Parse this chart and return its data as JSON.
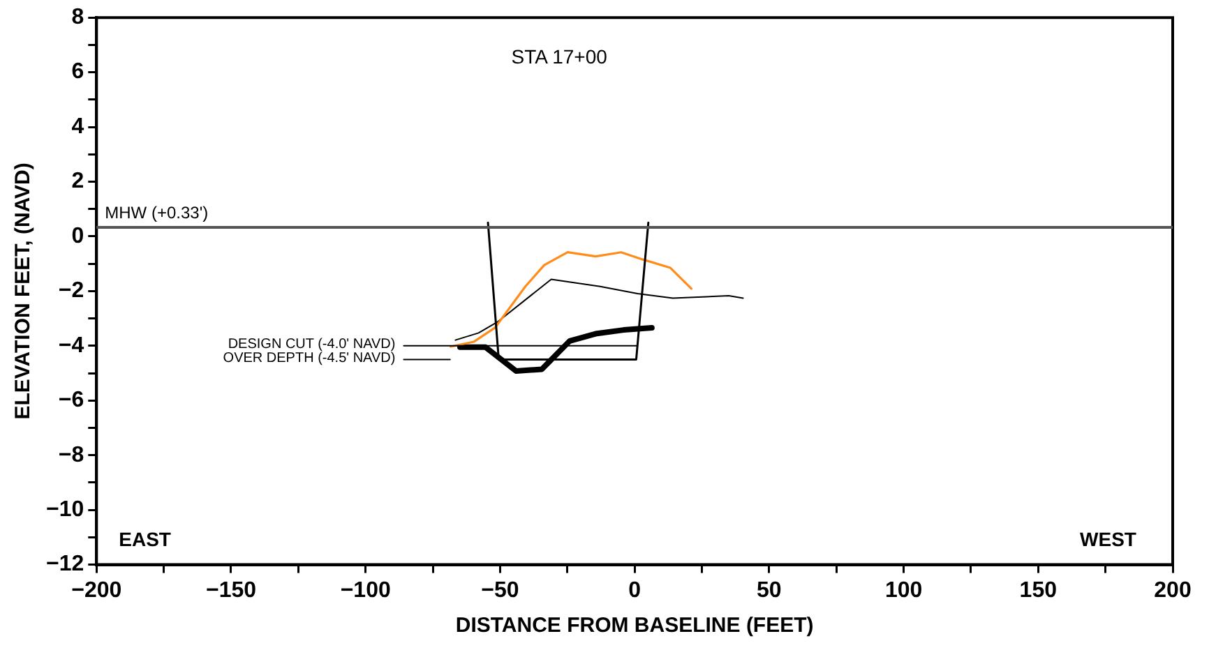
{
  "chart_data": {
    "type": "line",
    "title": "STA 17+00",
    "xlabel": "DISTANCE FROM BASELINE (FEET)",
    "ylabel": "ELEVATION FEET, (NAVD)",
    "xlim": [
      -200,
      200
    ],
    "ylim": [
      -12,
      8
    ],
    "xticks": [
      -200,
      {
        "value": -175,
        "label": null
      },
      -150,
      {
        "value": -125,
        "label": null
      },
      -100,
      {
        "value": -75,
        "label": null
      },
      -50,
      {
        "value": -25,
        "label": null
      },
      0,
      {
        "value": 25,
        "label": null
      },
      50,
      {
        "value": 75,
        "label": null
      },
      100,
      {
        "value": 125,
        "label": null
      },
      150,
      {
        "value": 175,
        "label": null
      },
      200
    ],
    "yticks": [
      -12,
      {
        "value": -11,
        "label": null
      },
      -10,
      {
        "value": -9,
        "label": null
      },
      -8,
      {
        "value": -7,
        "label": null
      },
      -6,
      {
        "value": -5,
        "label": null
      },
      -4,
      {
        "value": -3,
        "label": null
      },
      -2,
      {
        "value": -1,
        "label": null
      },
      0,
      {
        "value": 1,
        "label": null
      },
      2,
      {
        "value": 3,
        "label": null
      },
      4,
      {
        "value": 5,
        "label": null
      },
      6,
      {
        "value": 7,
        "label": null
      },
      8
    ],
    "marker": "none",
    "line_style": "solid",
    "series": [
      {
        "color": "#000000",
        "x": [
          -54.5,
          -50.5,
          0.6,
          5.1
        ],
        "values": [
          0.5,
          -4.5,
          -4.5,
          0.5
        ]
      },
      {
        "color": "#000000",
        "x": [
          -85.8,
          0.6
        ],
        "values": [
          -4.0,
          -4.0
        ]
      },
      {
        "color": "#000000",
        "x": [
          -85.8,
          -68.6
        ],
        "values": [
          -4.5,
          -4.5
        ]
      },
      {
        "color": "#ff8c1a",
        "x": [
          -68.4,
          -59.7,
          -51.9,
          -40.6,
          -33.6,
          -24.9,
          -14.5,
          -5.0,
          2.9,
          13.3,
          21.1
        ],
        "values": [
          -4.03,
          -3.85,
          -3.34,
          -1.83,
          -1.05,
          -0.58,
          -0.73,
          -0.58,
          -0.84,
          -1.15,
          -1.91
        ]
      },
      {
        "color": "#000000",
        "x": [
          -66.6,
          -58.0,
          -51.0,
          -31.0,
          -12.8,
          1.1,
          14.2,
          35.0,
          40.3
        ],
        "values": [
          -3.79,
          -3.53,
          -3.13,
          -1.57,
          -1.83,
          -2.09,
          -2.26,
          -2.17,
          -2.26
        ]
      },
      {
        "color": "#000000",
        "x": [
          -64.9,
          -55.4,
          -44.1,
          -34.5,
          -24.1,
          -14.5,
          -4.1,
          6.4
        ],
        "values": [
          -4.05,
          -4.05,
          -4.92,
          -4.86,
          -3.82,
          -3.56,
          -3.42,
          -3.34
        ]
      }
    ],
    "ref_lines": [
      {
        "axis": "y",
        "value": 0.33,
        "label": "MHW (+0.33')",
        "color": "#555555"
      }
    ],
    "annotations": [
      "EAST",
      "WEST",
      {
        "text": "DESIGN CUT (-4.0' NAVD)",
        "x": -85.8,
        "y": -4.0
      },
      {
        "text": "OVER DEPTH (-4.5' NAVD)",
        "x": -85.8,
        "y": -4.5
      }
    ]
  }
}
